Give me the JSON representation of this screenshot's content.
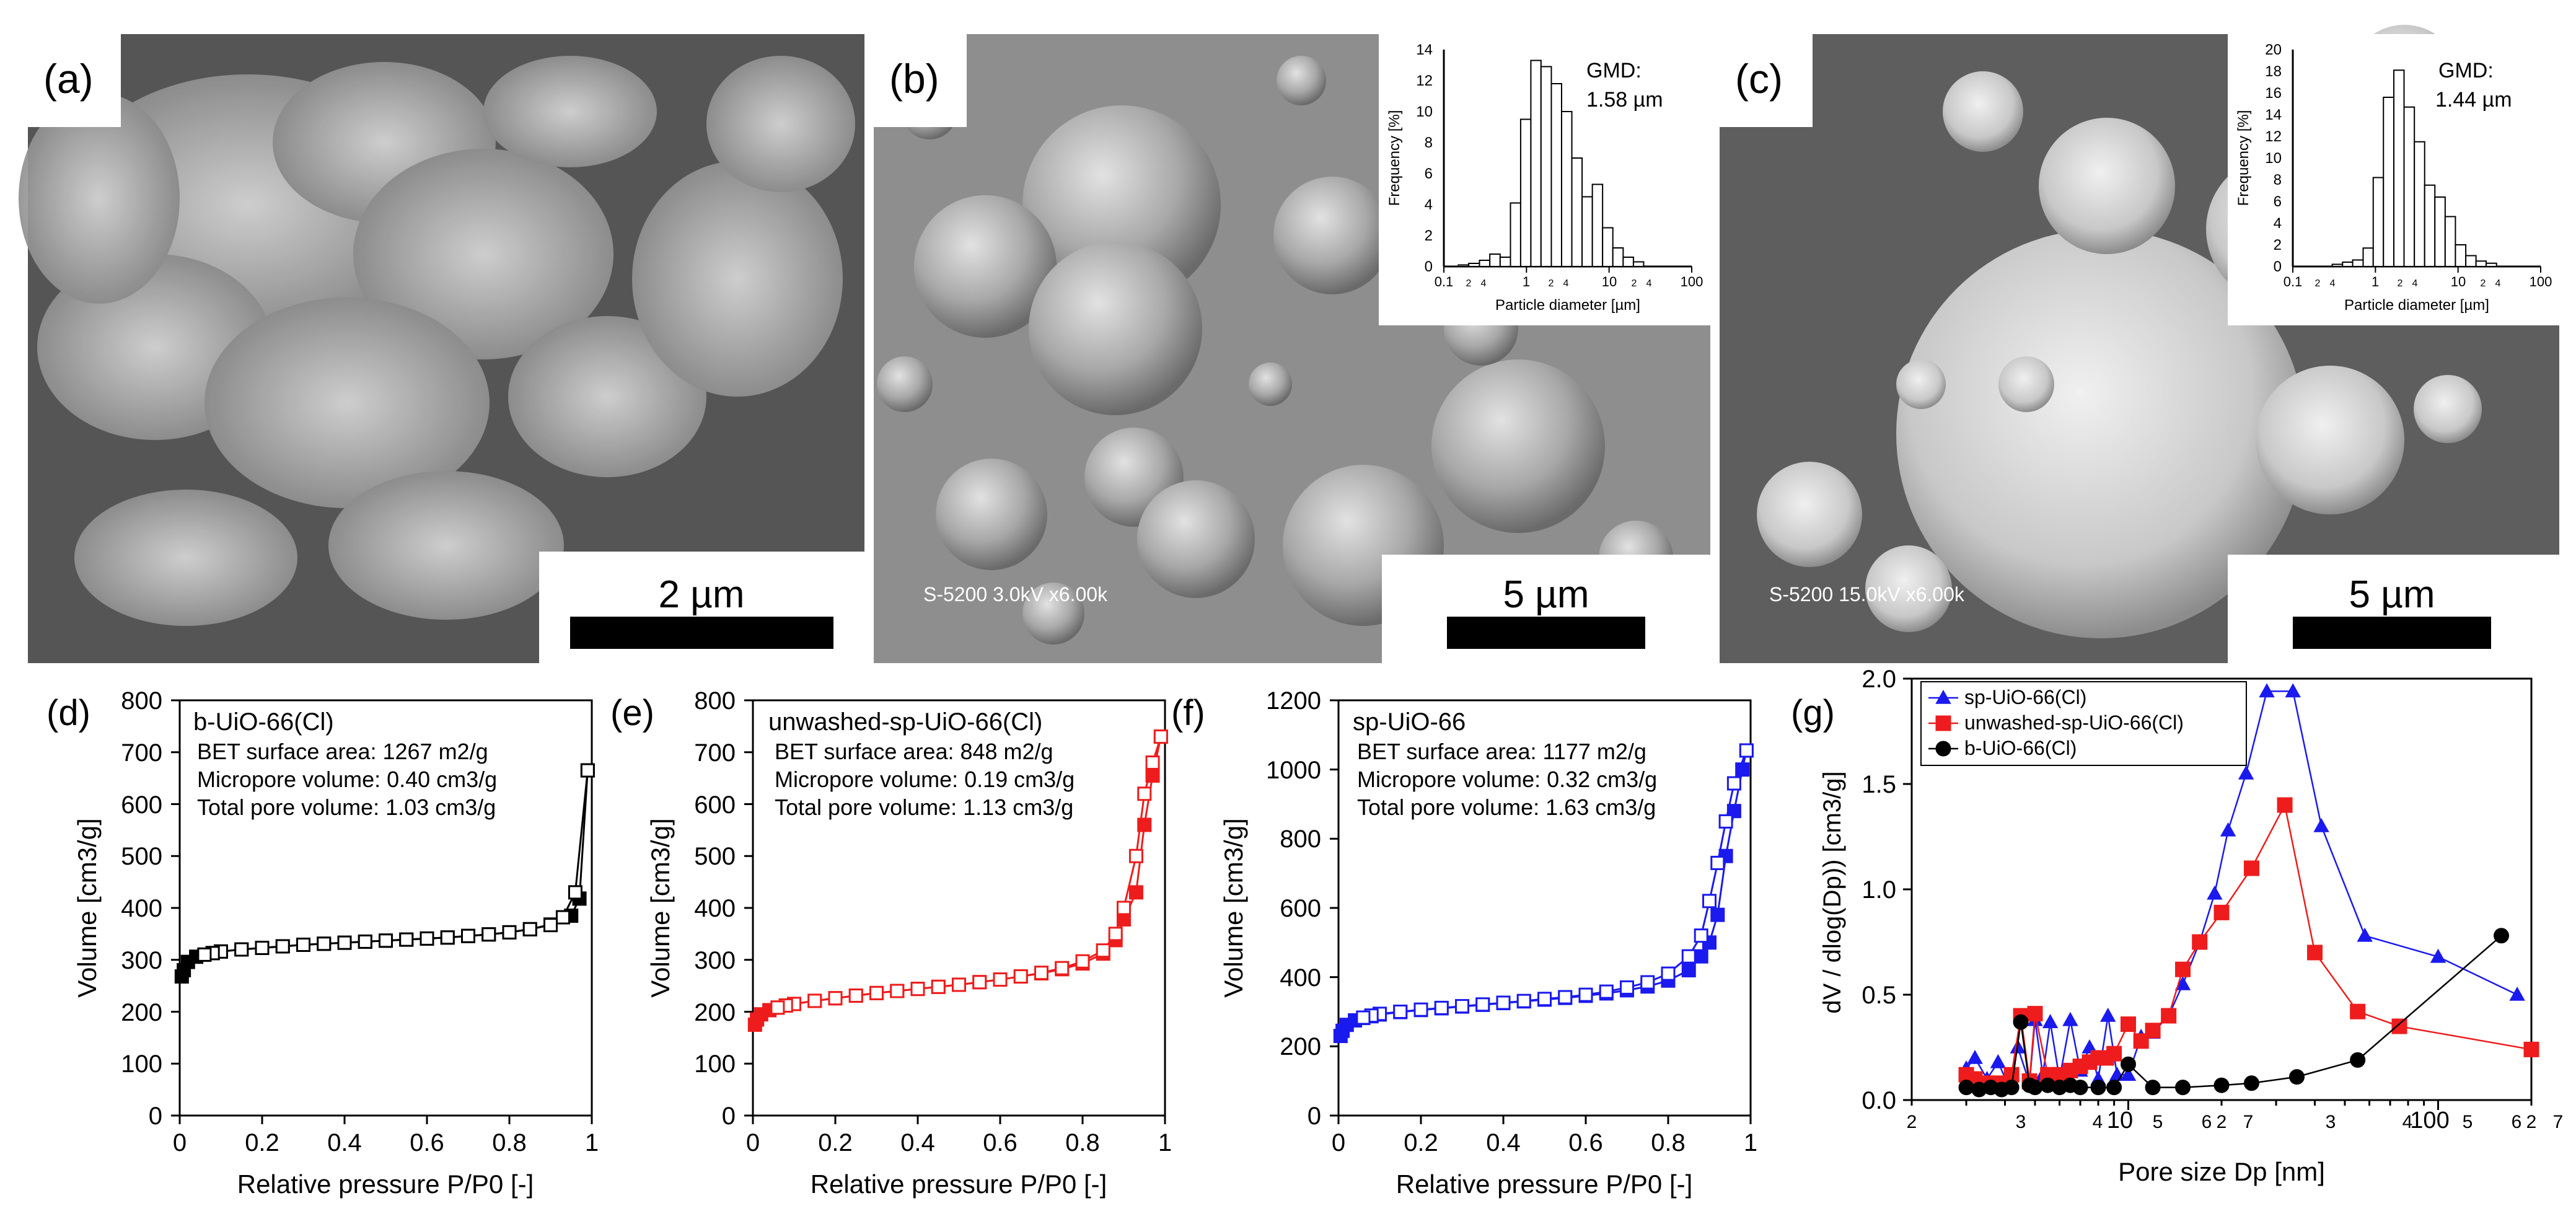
{
  "panels": {
    "a": {
      "label": "(a)",
      "scale_bar": "2 µm"
    },
    "b": {
      "label": "(b)",
      "scale_bar": "5 µm",
      "micro_caption": "S-5200 3.0kV x6.00k",
      "inset": {
        "gmd_label": "GMD:",
        "gmd_value": "1.58 µm",
        "ylabel": "Frequency [%]",
        "xlabel": "Particle diameter [µm]",
        "yticks": [
          "0",
          "2",
          "4",
          "6",
          "8",
          "10",
          "12",
          "14"
        ],
        "xticks": [
          "0.1",
          "2",
          "4",
          "1",
          "2",
          "4",
          "10",
          "2",
          "4",
          "100"
        ]
      }
    },
    "c": {
      "label": "(c)",
      "scale_bar": "5 µm",
      "micro_caption": "S-5200 15.0kV x6.00k",
      "inset": {
        "gmd_label": "GMD:",
        "gmd_value": "1.44 µm",
        "ylabel": "Frequency [%]",
        "xlabel": "Particle diameter [µm]",
        "yticks": [
          "0",
          "2",
          "4",
          "6",
          "8",
          "10",
          "12",
          "14",
          "16",
          "18",
          "20"
        ],
        "xticks": [
          "0.1",
          "2",
          "4",
          "1",
          "2",
          "4",
          "10",
          "2",
          "4",
          "100"
        ]
      }
    },
    "d": {
      "label": "(d)"
    },
    "e": {
      "label": "(e)"
    },
    "f": {
      "label": "(f)"
    },
    "g": {
      "label": "(g)"
    }
  },
  "chart_data": [
    {
      "id": "inset-b",
      "type": "bar",
      "xscale": "log",
      "xlim": [
        0.1,
        100
      ],
      "ylim": [
        0,
        14
      ],
      "bin_edges": [
        0.15,
        0.2,
        0.27,
        0.36,
        0.48,
        0.64,
        0.85,
        1.13,
        1.5,
        2.0,
        2.66,
        3.54,
        4.71,
        6.27,
        8.34,
        11.1,
        14.8,
        19.7,
        26.2
      ],
      "values": [
        0.1,
        0.2,
        0.4,
        0.8,
        0.6,
        4.1,
        9.5,
        13.3,
        12.9,
        11.8,
        10.0,
        7.0,
        4.5,
        5.3,
        2.5,
        1.2,
        0.6,
        0.3
      ]
    },
    {
      "id": "inset-c",
      "type": "bar",
      "xscale": "log",
      "xlim": [
        0.1,
        100
      ],
      "ylim": [
        0,
        20
      ],
      "bin_edges": [
        0.3,
        0.4,
        0.53,
        0.71,
        0.94,
        1.25,
        1.67,
        2.22,
        2.96,
        3.94,
        5.24,
        6.98,
        9.29,
        12.4,
        16.5,
        21.9,
        29.2
      ],
      "values": [
        0.2,
        0.4,
        0.6,
        1.7,
        8.2,
        15.6,
        18.1,
        14.7,
        11.5,
        7.5,
        6.4,
        4.6,
        2.0,
        1.0,
        0.5,
        0.3
      ]
    },
    {
      "id": "d",
      "type": "line",
      "xlabel": "Relative pressure P/P0 [-]",
      "ylabel": "Volume [cm3/g]",
      "xlim": [
        0,
        1
      ],
      "ylim": [
        0,
        800
      ],
      "xticks": [
        "0",
        "0.2",
        "0.4",
        "0.6",
        "0.8",
        "1"
      ],
      "yticks": [
        "0",
        "100",
        "200",
        "300",
        "400",
        "500",
        "600",
        "700",
        "800"
      ],
      "color": "#000000",
      "title": "b-UiO-66(Cl)",
      "annotations": [
        "BET surface area: 1267 m2/g",
        "Micropore volume: 0.40 cm3/g",
        "Total pore volume: 1.03 cm3/g"
      ],
      "series": [
        {
          "marker": "filled-square",
          "x": [
            0.005,
            0.01,
            0.02,
            0.04,
            0.06,
            0.08,
            0.1,
            0.15,
            0.2,
            0.25,
            0.3,
            0.35,
            0.4,
            0.45,
            0.5,
            0.55,
            0.6,
            0.65,
            0.7,
            0.75,
            0.8,
            0.85,
            0.9,
            0.95,
            0.97,
            0.99
          ],
          "y": [
            268,
            280,
            296,
            306,
            310,
            313,
            316,
            320,
            323,
            326,
            329,
            331,
            333,
            335,
            337,
            339,
            341,
            343,
            346,
            349,
            353,
            359,
            368,
            385,
            418,
            665
          ]
        },
        {
          "marker": "open-square",
          "x": [
            0.99,
            0.96,
            0.93,
            0.9,
            0.85,
            0.8,
            0.75,
            0.7,
            0.65,
            0.6,
            0.55,
            0.5,
            0.45,
            0.4,
            0.35,
            0.3,
            0.25,
            0.2,
            0.15,
            0.1,
            0.08,
            0.06
          ],
          "y": [
            665,
            430,
            382,
            367,
            359,
            353,
            349,
            346,
            343,
            341,
            339,
            337,
            335,
            333,
            331,
            329,
            326,
            323,
            320,
            316,
            313,
            310
          ]
        }
      ]
    },
    {
      "id": "e",
      "type": "line",
      "xlabel": "Relative pressure P/P0 [-]",
      "ylabel": "Volume [cm3/g]",
      "xlim": [
        0,
        1
      ],
      "ylim": [
        0,
        800
      ],
      "xticks": [
        "0",
        "0.2",
        "0.4",
        "0.6",
        "0.8",
        "1"
      ],
      "yticks": [
        "0",
        "100",
        "200",
        "300",
        "400",
        "500",
        "600",
        "700",
        "800"
      ],
      "color": "#ee1c1c",
      "title": "unwashed-sp-UiO-66(Cl)",
      "annotations": [
        "BET surface area: 848 m2/g",
        "Micropore volume: 0.19 cm3/g",
        "Total pore volume: 1.13 cm3/g"
      ],
      "series": [
        {
          "marker": "filled-square",
          "x": [
            0.005,
            0.01,
            0.02,
            0.04,
            0.06,
            0.08,
            0.1,
            0.15,
            0.2,
            0.25,
            0.3,
            0.35,
            0.4,
            0.45,
            0.5,
            0.55,
            0.6,
            0.65,
            0.7,
            0.75,
            0.8,
            0.85,
            0.88,
            0.9,
            0.93,
            0.95,
            0.97,
            0.99
          ],
          "y": [
            175,
            185,
            195,
            203,
            208,
            212,
            215,
            221,
            226,
            231,
            236,
            240,
            244,
            248,
            252,
            257,
            262,
            268,
            274,
            282,
            293,
            312,
            338,
            378,
            430,
            560,
            655,
            730
          ]
        },
        {
          "marker": "open-square",
          "x": [
            0.99,
            0.97,
            0.95,
            0.93,
            0.9,
            0.88,
            0.85,
            0.8,
            0.75,
            0.7,
            0.65,
            0.6,
            0.55,
            0.5,
            0.45,
            0.4,
            0.35,
            0.3,
            0.25,
            0.2,
            0.15,
            0.1,
            0.08,
            0.06
          ],
          "y": [
            730,
            680,
            620,
            500,
            400,
            350,
            318,
            297,
            284,
            275,
            268,
            262,
            257,
            252,
            248,
            244,
            240,
            236,
            231,
            226,
            221,
            215,
            212,
            208
          ]
        }
      ]
    },
    {
      "id": "f",
      "type": "line",
      "xlabel": "Relative pressure P/P0 [-]",
      "ylabel": "Volume [cm3/g]",
      "xlim": [
        0,
        1
      ],
      "ylim": [
        0,
        1200
      ],
      "xticks": [
        "0",
        "0.2",
        "0.4",
        "0.6",
        "0.8",
        "1"
      ],
      "yticks": [
        "0",
        "200",
        "400",
        "600",
        "800",
        "1000",
        "1200"
      ],
      "color": "#1a1aee",
      "title": "sp-UiO-66",
      "annotations": [
        "BET surface area: 1177 m2/g",
        "Micropore volume: 0.32 cm3/g",
        "Total pore volume: 1.63 cm3/g"
      ],
      "series": [
        {
          "marker": "filled-square",
          "x": [
            0.005,
            0.01,
            0.02,
            0.04,
            0.06,
            0.08,
            0.1,
            0.15,
            0.2,
            0.25,
            0.3,
            0.35,
            0.4,
            0.45,
            0.5,
            0.55,
            0.6,
            0.65,
            0.7,
            0.75,
            0.8,
            0.85,
            0.88,
            0.9,
            0.92,
            0.94,
            0.96,
            0.98,
            0.99
          ],
          "y": [
            230,
            245,
            262,
            275,
            282,
            287,
            292,
            299,
            305,
            310,
            315,
            320,
            325,
            330,
            335,
            340,
            346,
            353,
            362,
            373,
            390,
            420,
            460,
            500,
            580,
            750,
            880,
            1000,
            1055
          ]
        },
        {
          "marker": "open-square",
          "x": [
            0.99,
            0.96,
            0.94,
            0.92,
            0.9,
            0.88,
            0.85,
            0.8,
            0.75,
            0.7,
            0.65,
            0.6,
            0.55,
            0.5,
            0.45,
            0.4,
            0.35,
            0.3,
            0.25,
            0.2,
            0.15,
            0.1,
            0.08,
            0.06
          ],
          "y": [
            1055,
            960,
            850,
            730,
            620,
            520,
            460,
            410,
            385,
            370,
            358,
            349,
            342,
            337,
            331,
            326,
            321,
            316,
            311,
            306,
            300,
            294,
            289,
            283
          ]
        }
      ]
    },
    {
      "id": "g",
      "type": "line",
      "xscale": "log",
      "xlabel": "Pore size Dp [nm]",
      "ylabel": "dV / dlog(Dp)) [cm3/g]",
      "xlim": [
        2,
        200
      ],
      "ylim": [
        0,
        2.0
      ],
      "xticks": [
        "2",
        "3",
        "4",
        "5",
        "6",
        "7",
        "10",
        "2",
        "3",
        "4",
        "5",
        "6",
        "7",
        "100",
        "2"
      ],
      "yticks": [
        "0.0",
        "0.5",
        "1.0",
        "1.5",
        "2.0"
      ],
      "series": [
        {
          "name": "sp-UiO-66(Cl)",
          "color": "#1a1aee",
          "marker": "triangle",
          "x": [
            3.0,
            3.2,
            3.5,
            3.8,
            4.1,
            4.4,
            4.8,
            5.0,
            5.3,
            5.6,
            6.0,
            6.5,
            7.0,
            7.5,
            8.0,
            8.6,
            9.2,
            10.0,
            11.0,
            12.0,
            13.5,
            15.0,
            17.0,
            19.0,
            21.0,
            24.0,
            28.0,
            34.0,
            42.0,
            58.0,
            100.0,
            180.0
          ],
          "y": [
            0.15,
            0.2,
            0.1,
            0.18,
            0.07,
            0.25,
            0.08,
            0.38,
            0.12,
            0.37,
            0.1,
            0.38,
            0.14,
            0.25,
            0.1,
            0.4,
            0.12,
            0.12,
            0.3,
            0.32,
            0.4,
            0.55,
            0.75,
            0.98,
            1.28,
            1.55,
            1.94,
            1.94,
            1.3,
            0.78,
            0.68,
            0.5
          ]
        },
        {
          "name": "unwashed-sp-UiO-66(Cl)",
          "color": "#ee1c1c",
          "marker": "square",
          "x": [
            3.0,
            3.2,
            3.5,
            3.8,
            4.2,
            4.5,
            4.8,
            5.0,
            5.5,
            6.0,
            6.5,
            7.0,
            7.5,
            8.0,
            8.5,
            9.0,
            10.0,
            11.0,
            12.0,
            13.5,
            15.0,
            17.0,
            20.0,
            25.0,
            32.0,
            40.0,
            55.0,
            75.0,
            200.0
          ],
          "y": [
            0.12,
            0.1,
            0.08,
            0.08,
            0.12,
            0.4,
            0.09,
            0.41,
            0.12,
            0.12,
            0.14,
            0.16,
            0.18,
            0.2,
            0.2,
            0.22,
            0.36,
            0.28,
            0.33,
            0.4,
            0.62,
            0.75,
            0.89,
            1.1,
            1.4,
            0.7,
            0.42,
            0.35,
            0.24
          ]
        },
        {
          "name": "b-UiO-66(Cl)",
          "color": "#000000",
          "marker": "circle",
          "x": [
            3.0,
            3.3,
            3.6,
            3.9,
            4.2,
            4.5,
            4.8,
            5.0,
            5.5,
            6.0,
            6.5,
            7.0,
            8.0,
            9.0,
            10.0,
            12.0,
            15.0,
            20.0,
            25.0,
            35.0,
            55.0,
            160.0
          ],
          "y": [
            0.06,
            0.05,
            0.06,
            0.05,
            0.06,
            0.37,
            0.07,
            0.06,
            0.07,
            0.06,
            0.07,
            0.06,
            0.06,
            0.06,
            0.17,
            0.06,
            0.06,
            0.07,
            0.08,
            0.11,
            0.19,
            0.78
          ]
        }
      ]
    }
  ]
}
